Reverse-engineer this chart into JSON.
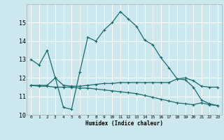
{
  "xlabel": "Humidex (Indice chaleur)",
  "bg_color": "#cce8ee",
  "grid_color": "#ffffff",
  "line_color": "#1a6b6b",
  "xlim": [
    -0.5,
    23.5
  ],
  "ylim": [
    10,
    16
  ],
  "yticks": [
    10,
    11,
    12,
    13,
    14,
    15
  ],
  "xticks": [
    0,
    1,
    2,
    3,
    4,
    5,
    6,
    7,
    8,
    9,
    10,
    11,
    12,
    13,
    14,
    15,
    16,
    17,
    18,
    19,
    20,
    21,
    22,
    23
  ],
  "line1_x": [
    0,
    1,
    2,
    3,
    4,
    5,
    6,
    7,
    8,
    9,
    10,
    11,
    12,
    13,
    14,
    15,
    16,
    17,
    18,
    19,
    20,
    21,
    22,
    23
  ],
  "line1_y": [
    13.0,
    12.7,
    13.5,
    12.0,
    10.4,
    10.3,
    12.3,
    14.2,
    14.0,
    14.6,
    15.0,
    15.6,
    15.2,
    14.8,
    14.05,
    13.8,
    13.1,
    12.55,
    11.95,
    11.9,
    11.5,
    10.8,
    10.6,
    10.5
  ],
  "line2_x": [
    0,
    1,
    2,
    3,
    4,
    5,
    6,
    7,
    8,
    9,
    10,
    11,
    12,
    13,
    14,
    15,
    16,
    17,
    18,
    19,
    20,
    21,
    22,
    23
  ],
  "line2_y": [
    11.6,
    11.6,
    11.6,
    12.0,
    11.6,
    11.55,
    11.55,
    11.6,
    11.65,
    11.7,
    11.7,
    11.75,
    11.75,
    11.75,
    11.75,
    11.75,
    11.75,
    11.75,
    11.95,
    12.0,
    11.85,
    11.55,
    11.5,
    11.5
  ],
  "line3_x": [
    0,
    1,
    2,
    3,
    4,
    5,
    6,
    7,
    8,
    9,
    10,
    11,
    12,
    13,
    14,
    15,
    16,
    17,
    18,
    19,
    20,
    21,
    22,
    23
  ],
  "line3_y": [
    11.6,
    11.55,
    11.55,
    11.5,
    11.5,
    11.5,
    11.45,
    11.45,
    11.4,
    11.35,
    11.3,
    11.25,
    11.2,
    11.15,
    11.05,
    10.95,
    10.85,
    10.75,
    10.65,
    10.6,
    10.55,
    10.65,
    10.55,
    10.5
  ]
}
